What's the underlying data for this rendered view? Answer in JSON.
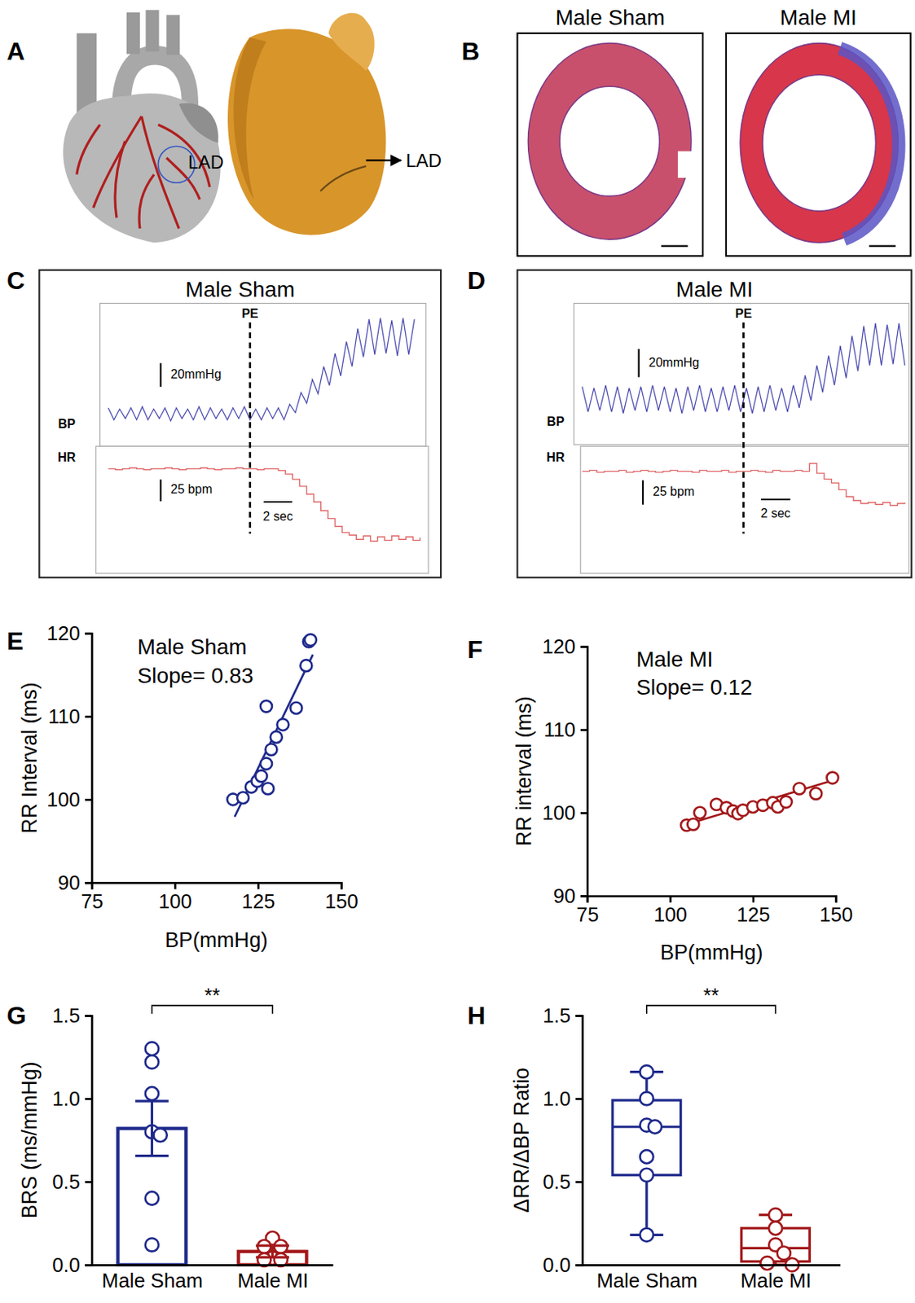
{
  "chart_data": [
    {
      "panel": "A",
      "type": "diagram",
      "annotations": [
        "LAD",
        "LAD"
      ]
    },
    {
      "panel": "B",
      "type": "histology",
      "titles": [
        "Male Sham",
        "Male MI"
      ]
    },
    {
      "panel": "C",
      "type": "line",
      "title": "Male Sham",
      "xlim": [
        0,
        22
      ],
      "annotations": [
        {
          "x": 10,
          "text": "PE"
        }
      ],
      "x_scale_bar": {
        "value": 2,
        "label": "2 sec"
      },
      "traces": [
        {
          "ylabel": "BP",
          "color": "#4b4bb0",
          "ylim": [
            74,
            192
          ],
          "scale_bar": {
            "value": 20,
            "label": "20mmHg"
          },
          "x": [
            0,
            0.4,
            0.8,
            1.2,
            1.6,
            2,
            2.4,
            2.8,
            3.2,
            3.6,
            4,
            4.4,
            4.8,
            5.2,
            5.6,
            6,
            6.4,
            6.8,
            7.2,
            7.6,
            8,
            8.4,
            8.8,
            9.2,
            9.6,
            10,
            10.4,
            10.8,
            11.2,
            11.6,
            12,
            12.4,
            12.8,
            13.2,
            13.6,
            14,
            14.4,
            14.8,
            15.2,
            15.6,
            16,
            16.4,
            16.8,
            17.2,
            17.6,
            18,
            18.4,
            18.8,
            19.2,
            19.6,
            20,
            20.4,
            20.8,
            21.2,
            21.6
          ],
          "values": [
            105,
            95,
            104,
            96,
            105,
            95,
            106,
            95,
            104,
            96,
            105,
            94,
            105,
            96,
            104,
            95,
            106,
            95,
            105,
            96,
            104,
            95,
            105,
            96,
            106,
            95,
            104,
            95,
            105,
            96,
            105,
            95,
            108,
            101,
            118,
            109,
            129,
            117,
            140,
            124,
            151,
            132,
            161,
            140,
            172,
            148,
            180,
            150,
            181,
            151,
            179,
            149,
            181,
            150,
            180
          ]
        },
        {
          "ylabel": "HR",
          "color": "#e06666",
          "line_style": "step",
          "ylim": [
            482,
            624
          ],
          "scale_bar": {
            "value": 25,
            "label": "25 bpm"
          },
          "x": [
            0,
            0.5,
            1,
            1.5,
            2,
            2.5,
            3,
            3.5,
            4,
            4.5,
            5,
            5.5,
            6,
            6.5,
            7,
            7.5,
            8,
            8.5,
            9,
            9.5,
            10,
            10.5,
            11,
            11.5,
            12,
            12.5,
            13,
            13.5,
            14,
            14.5,
            15,
            15.5,
            16,
            16.5,
            17,
            17.5,
            18,
            18.5,
            19,
            19.5,
            20,
            20.5,
            21,
            21.5,
            22
          ],
          "values": [
            600,
            599,
            600,
            601,
            600,
            599,
            600,
            600,
            601,
            600,
            599,
            600,
            600,
            601,
            600,
            599,
            600,
            600,
            601,
            600,
            600,
            599,
            600,
            600,
            598,
            594,
            588,
            580,
            571,
            562,
            552,
            543,
            534,
            527,
            524,
            519,
            523,
            517,
            522,
            518,
            523,
            519,
            522,
            518,
            521
          ]
        }
      ]
    },
    {
      "panel": "D",
      "type": "line",
      "title": "Male MI",
      "xlim": [
        0,
        22
      ],
      "annotations": [
        {
          "x": 11,
          "text": "PE"
        }
      ],
      "x_scale_bar": {
        "value": 2,
        "label": "2 sec"
      },
      "traces": [
        {
          "ylabel": "BP",
          "color": "#4b4bb0",
          "ylim": [
            69,
            167
          ],
          "scale_bar": {
            "value": 20,
            "label": "20mmHg"
          },
          "x": [
            0,
            0.4,
            0.8,
            1.2,
            1.6,
            2,
            2.4,
            2.8,
            3.2,
            3.6,
            4,
            4.4,
            4.8,
            5.2,
            5.6,
            6,
            6.4,
            6.8,
            7.2,
            7.6,
            8,
            8.4,
            8.8,
            9.2,
            9.6,
            10,
            10.4,
            10.8,
            11.2,
            11.6,
            12,
            12.4,
            12.8,
            13.2,
            13.6,
            14,
            14.4,
            14.8,
            15.2,
            15.6,
            16,
            16.4,
            16.8,
            17.2,
            17.6,
            18,
            18.4,
            18.8,
            19.2,
            19.6,
            20,
            20.4,
            20.8,
            21.2,
            21.6,
            22
          ],
          "values": [
            109,
            91,
            108,
            92,
            110,
            91,
            109,
            90,
            108,
            92,
            109,
            91,
            110,
            92,
            109,
            91,
            108,
            90,
            109,
            92,
            110,
            91,
            108,
            91,
            109,
            92,
            110,
            91,
            108,
            90,
            109,
            91,
            110,
            92,
            108,
            91,
            110,
            94,
            117,
            99,
            124,
            105,
            131,
            110,
            138,
            115,
            145,
            120,
            152,
            124,
            154,
            124,
            153,
            125,
            154,
            124
          ]
        },
        {
          "ylabel": "HR",
          "color": "#e06666",
          "line_style": "step",
          "ylim": [
            497,
            624
          ],
          "scale_bar": {
            "value": 25,
            "label": "25 bpm"
          },
          "x": [
            0,
            0.5,
            1,
            1.5,
            2,
            2.5,
            3,
            3.5,
            4,
            4.5,
            5,
            5.5,
            6,
            6.5,
            7,
            7.5,
            8,
            8.5,
            9,
            9.5,
            10,
            10.5,
            11,
            11.5,
            12,
            12.5,
            13,
            13.5,
            14,
            14.5,
            15,
            15.5,
            16,
            16.5,
            17,
            17.5,
            18,
            18.5,
            19,
            19.5,
            20,
            20.5,
            21,
            21.5,
            22
          ],
          "values": [
            600,
            601,
            599,
            600,
            600,
            601,
            599,
            600,
            601,
            600,
            599,
            600,
            601,
            600,
            600,
            599,
            601,
            600,
            600,
            601,
            599,
            600,
            600,
            601,
            600,
            599,
            601,
            600,
            600,
            601,
            600,
            608,
            598,
            592,
            588,
            581,
            574,
            570,
            567,
            568,
            566,
            568,
            565,
            567,
            568
          ]
        }
      ]
    },
    {
      "panel": "E",
      "type": "scatter",
      "title": "Male Sham",
      "color": "#1f2a8c",
      "marker": "circle",
      "xlabel": "BP(mmHg)",
      "ylabel": "RR Interval (ms)",
      "xlim": [
        75,
        150
      ],
      "xticks": [
        75,
        100,
        125,
        150
      ],
      "ylim": [
        90,
        120
      ],
      "yticks": [
        90,
        100,
        110,
        120
      ],
      "x": [
        117.5,
        120.5,
        123,
        124.8,
        126,
        127.5,
        127.5,
        128,
        129,
        130.5,
        132.5,
        136.5,
        139.5,
        140.3,
        140.8
      ],
      "values": [
        100,
        100.2,
        101.5,
        102.2,
        102.8,
        104.3,
        111.2,
        101.3,
        106,
        107.5,
        109,
        111,
        116.1,
        119,
        119.2
      ],
      "fit": {
        "slope": 0.83,
        "intercept": -0.03,
        "x": [
          118,
          141.5
        ],
        "label": "Slope= 0.83"
      }
    },
    {
      "panel": "F",
      "type": "scatter",
      "title": "Male MI",
      "color": "#a3191b",
      "marker": "circle",
      "xlabel": "BP(mmHg)",
      "ylabel": "RR interval (ms)",
      "xlim": [
        75,
        150
      ],
      "xticks": [
        75,
        100,
        125,
        150
      ],
      "ylim": [
        90,
        120
      ],
      "yticks": [
        90,
        100,
        110,
        120
      ],
      "x": [
        105,
        107,
        109,
        114,
        117,
        119,
        120.5,
        122,
        125,
        128,
        131,
        132.5,
        135,
        139,
        144,
        149
      ],
      "values": [
        98.5,
        98.6,
        100,
        101,
        100.6,
        100.2,
        99.9,
        100.3,
        100.7,
        100.9,
        101.2,
        100.7,
        101.3,
        102.9,
        102.3,
        104.2
      ],
      "fit": {
        "slope": 0.12,
        "intercept": 86,
        "x": [
          105,
          150
        ],
        "label": "Slope= 0.12"
      }
    },
    {
      "panel": "G",
      "type": "bar",
      "categories": [
        "Male Sham",
        "Male MI"
      ],
      "values": [
        0.82,
        0.08
      ],
      "errors": [
        0.165,
        0.035
      ],
      "colors": [
        "#1f2a8c",
        "#a3191b"
      ],
      "points": [
        [
          1.3,
          1.22,
          1.03,
          0.8,
          0.78,
          0.4,
          0.12
        ],
        [
          0.16,
          0.11,
          0.11,
          0.04,
          0.03,
          0.03
        ]
      ],
      "ylabel": "BRS (ms/mmHg)",
      "ylim": [
        0,
        1.5
      ],
      "yticks": [
        {
          "value": 0,
          "label": "0.0"
        },
        {
          "value": 0.5,
          "label": "0.5"
        },
        {
          "value": 1,
          "label": "1.0"
        },
        {
          "value": 1.5,
          "label": "1.5"
        }
      ],
      "annotations": [
        "**"
      ]
    },
    {
      "panel": "H",
      "type": "box",
      "categories": [
        "Male Sham",
        "Male MI"
      ],
      "colors": [
        "#1f2a8c",
        "#a3191b"
      ],
      "stats": [
        {
          "min": 0.18,
          "q1": 0.54,
          "median": 0.83,
          "q3": 0.99,
          "max": 1.16
        },
        {
          "min": 0,
          "q1": 0.02,
          "median": 0.1,
          "q3": 0.22,
          "max": 0.3
        }
      ],
      "points": [
        [
          1.16,
          1.0,
          0.84,
          0.83,
          0.65,
          0.54,
          0.18
        ],
        [
          0.3,
          0.22,
          0.12,
          0.07,
          0.01,
          0
        ]
      ],
      "ylabel": "ΔRR/ΔBP Ratio",
      "ylim": [
        0,
        1.5
      ],
      "yticks": [
        {
          "value": 0,
          "label": "0.0"
        },
        {
          "value": 0.5,
          "label": "0.5"
        },
        {
          "value": 1,
          "label": "1.0"
        },
        {
          "value": 1.5,
          "label": "1.5"
        }
      ],
      "annotations": [
        "**"
      ]
    }
  ]
}
